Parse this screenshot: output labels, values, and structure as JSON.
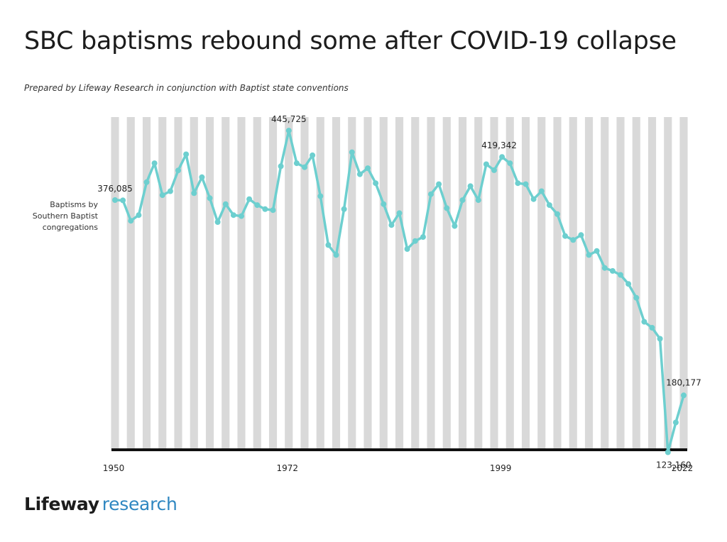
{
  "title": "SBC baptisms rebound some after COVID-19 collapse",
  "subtitle": "Prepared by Lifeway Research in conjunction with Baptist state conventions",
  "logo": {
    "word1": "Lifeway",
    "word2": "research"
  },
  "colors": {
    "line": "#6dcfcf",
    "stripe": "#d9d9d9",
    "axis": "#111111",
    "logo_accent": "#2f87c1"
  },
  "chart_data": {
    "type": "line",
    "series": [
      {
        "name": "Baptisms by Southern Baptist congregations",
        "x": [
          1950,
          1951,
          1952,
          1953,
          1954,
          1955,
          1956,
          1957,
          1958,
          1959,
          1960,
          1961,
          1962,
          1963,
          1964,
          1965,
          1966,
          1967,
          1968,
          1969,
          1970,
          1971,
          1972,
          1973,
          1974,
          1975,
          1976,
          1977,
          1978,
          1979,
          1980,
          1981,
          1982,
          1983,
          1984,
          1985,
          1986,
          1987,
          1988,
          1989,
          1990,
          1991,
          1992,
          1993,
          1994,
          1995,
          1996,
          1997,
          1998,
          1999,
          2000,
          2001,
          2002,
          2003,
          2004,
          2005,
          2006,
          2007,
          2008,
          2009,
          2010,
          2011,
          2012,
          2013,
          2014,
          2015,
          2016,
          2017,
          2018,
          2019,
          2020,
          2021,
          2022
        ],
        "values": [
          376085,
          375800,
          355300,
          361000,
          394000,
          413000,
          381000,
          385000,
          405800,
          422000,
          383000,
          399000,
          378000,
          354000,
          372000,
          361000,
          360000,
          377000,
          371000,
          367000,
          366000,
          410000,
          445725,
          413000,
          409000,
          421000,
          380000,
          331000,
          321000,
          367000,
          424000,
          402000,
          408000,
          393000,
          372000,
          351000,
          363000,
          327000,
          335000,
          339000,
          382000,
          392000,
          368000,
          350000,
          376000,
          390000,
          376000,
          412000,
          406000,
          419342,
          413000,
          393000,
          392000,
          377000,
          385000,
          371000,
          362000,
          340000,
          336000,
          341000,
          321000,
          325000,
          308000,
          305000,
          301000,
          292000,
          278000,
          254000,
          248000,
          237000,
          123160,
          153000,
          180177
        ]
      }
    ],
    "labels": [
      {
        "x": 1950,
        "text": "376,085"
      },
      {
        "x": 1972,
        "text": "445,725"
      },
      {
        "x": 1999,
        "text": "419,342"
      },
      {
        "x": 2020,
        "text": "123,160"
      },
      {
        "x": 2022,
        "text": "180,177"
      }
    ],
    "series_label": [
      "Baptisms by",
      "Southern Baptist",
      "congregations"
    ],
    "x_ticks": [
      "1950",
      "1972",
      "1999",
      "2022"
    ],
    "ylim": [
      100000,
      470000
    ],
    "xlim": [
      1950,
      2022
    ],
    "grid": "alternating vertical bands per year",
    "legend": "left"
  }
}
